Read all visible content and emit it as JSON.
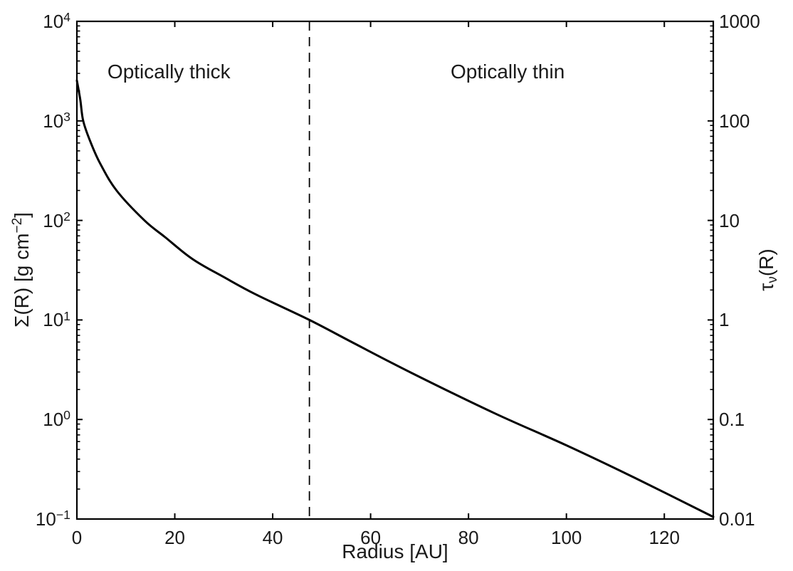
{
  "colors": {
    "foreground": "#000000",
    "background": "#ffffff"
  },
  "chart_data": {
    "type": "line",
    "title": "",
    "xlabel": "Radius [AU]",
    "ylabel_left": "Σ(R) [g cm^−2]",
    "ylabel_left_segments": [
      {
        "t": "Σ(R) [g cm"
      },
      {
        "t": "−2",
        "sup": true
      },
      {
        "t": "]"
      }
    ],
    "ylabel_right": "τ_ν(R)",
    "ylabel_right_segments": [
      {
        "t": "τ"
      },
      {
        "t": "ν",
        "sub": true
      },
      {
        "t": "(R)"
      }
    ],
    "x_range": [
      0,
      130
    ],
    "x_ticks": [
      0,
      20,
      40,
      60,
      80,
      100,
      120
    ],
    "y_left_scale": "log",
    "y_left_range": [
      0.1,
      10000
    ],
    "y_left_tick_labels": [
      {
        "base": "10",
        "exp": "4"
      },
      {
        "base": "10",
        "exp": "3"
      },
      {
        "base": "10",
        "exp": "2"
      },
      {
        "base": "10",
        "exp": "1"
      },
      {
        "base": "10",
        "exp": "0"
      },
      {
        "base": "10",
        "exp": "−1"
      }
    ],
    "y_right_scale": "log",
    "y_right_range": [
      0.01,
      1000
    ],
    "y_right_tick_labels": [
      "1000",
      "100",
      "10",
      "1",
      "0.1",
      "0.01"
    ],
    "y_right_relation": "tau_nu(R) = Sigma(R) / 10",
    "grid": false,
    "legend": null,
    "series": [
      {
        "name": "Sigma(R)",
        "color": "#000000",
        "x": [
          0,
          0.7,
          1.3,
          2.8,
          4.8,
          8.1,
          13.8,
          18,
          23.6,
          30,
          36.6,
          47.5,
          57,
          68.6,
          85.4,
          100,
          115,
          130
        ],
        "y": [
          2550,
          1630,
          1000,
          610,
          370,
          200,
          100,
          68,
          41,
          27,
          18,
          10,
          5.7,
          2.9,
          1.15,
          0.55,
          0.245,
          0.105
        ]
      }
    ],
    "vline": {
      "x": 47.5,
      "style": "dashed",
      "color": "#000000",
      "meaning": "tau_nu = 1 boundary"
    },
    "annotations": [
      {
        "text": "Optically thick",
        "x": 18.8,
        "y": 3100
      },
      {
        "text": "Optically thin",
        "x": 88.0,
        "y": 3100
      }
    ]
  }
}
